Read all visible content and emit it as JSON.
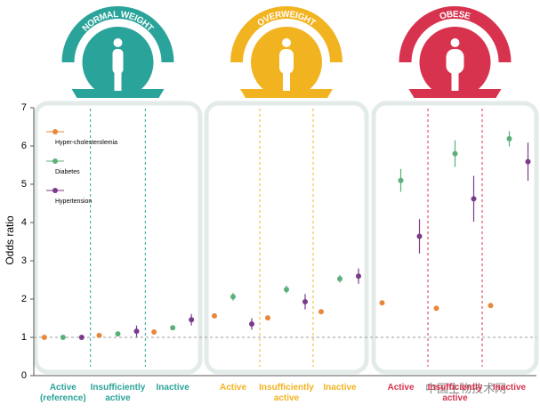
{
  "chart_data": {
    "type": "dot",
    "y_label": "Odds ratio",
    "ylim": [
      0,
      7
    ],
    "yticks": [
      0,
      1,
      2,
      3,
      4,
      5,
      6,
      7
    ],
    "reference_line": 1,
    "groups": [
      {
        "name": "NORMAL WEIGHT",
        "color": "#2aa39a"
      },
      {
        "name": "OVERWEIGHT",
        "color": "#f2b320"
      },
      {
        "name": "OBESE",
        "color": "#d8334e"
      }
    ],
    "categories": [
      "Active (reference)",
      "Insufficiently active",
      "Inactive",
      "Active",
      "Insufficiently active",
      "Inactive",
      "Active",
      "Insufficiently active",
      "Inactive"
    ],
    "series": [
      {
        "name": "Hyper-cholesterolemia",
        "color": "#e8873a",
        "values": [
          1.0,
          1.05,
          1.14,
          1.56,
          1.51,
          1.67,
          1.9,
          1.76,
          1.83
        ],
        "errors": [
          0.02,
          0.04,
          0.05,
          0.05,
          0.05,
          0.05,
          0.06,
          0.06,
          0.06
        ]
      },
      {
        "name": "Diabetes",
        "color": "#5bb07a",
        "values": [
          1.0,
          1.09,
          1.25,
          2.06,
          2.25,
          2.53,
          5.1,
          5.8,
          6.19
        ],
        "errors": [
          0.02,
          0.04,
          0.06,
          0.1,
          0.1,
          0.1,
          0.3,
          0.35,
          0.2
        ]
      },
      {
        "name": "Hypertension",
        "color": "#7b3a8a",
        "values": [
          1.0,
          1.16,
          1.46,
          1.35,
          1.93,
          2.6,
          3.64,
          4.62,
          5.59
        ],
        "errors": [
          0.03,
          0.15,
          0.15,
          0.15,
          0.2,
          0.2,
          0.45,
          0.6,
          0.5
        ]
      }
    ],
    "watermark": "中国生物技术网"
  }
}
